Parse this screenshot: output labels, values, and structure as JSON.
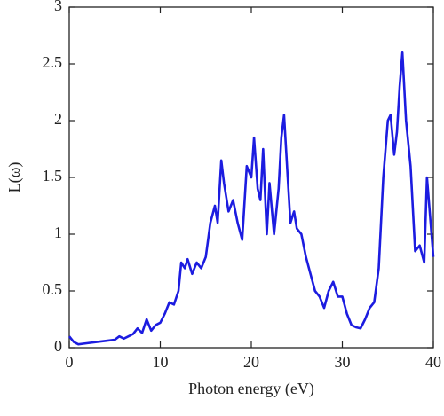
{
  "chart_data": {
    "type": "line",
    "x_label": "Photon energy (eV)",
    "y_label": "L(ω)",
    "x": [
      0,
      0.5,
      1,
      2,
      3,
      4,
      5,
      5.5,
      6,
      6.5,
      7,
      7.5,
      8,
      8.5,
      9,
      9.5,
      10,
      10.5,
      11,
      11.5,
      12,
      12.3,
      12.7,
      13,
      13.5,
      14,
      14.5,
      15,
      15.5,
      16,
      16.3,
      16.7,
      17,
      17.5,
      18,
      18.5,
      19,
      19.5,
      20,
      20.3,
      20.7,
      21,
      21.3,
      21.7,
      22,
      22.5,
      23,
      23.3,
      23.6,
      24,
      24.3,
      24.7,
      25,
      25.5,
      26,
      26.5,
      27,
      27.5,
      28,
      28.5,
      29,
      29.5,
      30,
      30.5,
      31,
      31.5,
      32,
      32.5,
      33,
      33.5,
      34,
      34.5,
      35,
      35.3,
      35.7,
      36,
      36.3,
      36.6,
      37,
      37.5,
      38,
      38.5,
      39,
      39.3,
      39.7,
      40
    ],
    "series": [
      {
        "name": "L(ω)",
        "color": "#1c1ce0",
        "values": [
          0.1,
          0.05,
          0.03,
          0.04,
          0.05,
          0.06,
          0.07,
          0.1,
          0.08,
          0.1,
          0.12,
          0.17,
          0.13,
          0.25,
          0.15,
          0.2,
          0.22,
          0.3,
          0.4,
          0.38,
          0.5,
          0.75,
          0.7,
          0.78,
          0.65,
          0.75,
          0.7,
          0.8,
          1.1,
          1.25,
          1.1,
          1.65,
          1.45,
          1.2,
          1.3,
          1.1,
          0.95,
          1.6,
          1.5,
          1.85,
          1.4,
          1.3,
          1.75,
          1.0,
          1.45,
          1.0,
          1.4,
          1.85,
          2.05,
          1.5,
          1.1,
          1.2,
          1.05,
          1.0,
          0.8,
          0.65,
          0.5,
          0.45,
          0.35,
          0.5,
          0.58,
          0.45,
          0.45,
          0.3,
          0.2,
          0.18,
          0.17,
          0.25,
          0.35,
          0.4,
          0.7,
          1.5,
          2.0,
          2.05,
          1.7,
          1.9,
          2.3,
          2.6,
          2.0,
          1.6,
          0.85,
          0.9,
          0.75,
          1.5,
          1.1,
          0.8
        ]
      }
    ],
    "xlim": [
      0,
      40
    ],
    "xticks": [
      0,
      10,
      20,
      30,
      40
    ],
    "ylim": [
      0,
      3
    ],
    "yticks": [
      0,
      0.5,
      1,
      1.5,
      2,
      2.5,
      3
    ]
  }
}
